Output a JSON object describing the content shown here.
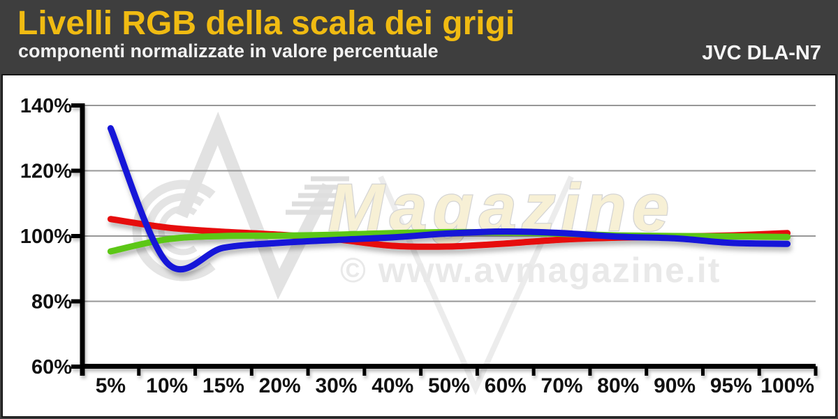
{
  "header": {
    "title": "Livelli RGB della scala dei grigi",
    "subtitle": "componenti normalizzate in valore percentuale",
    "device": "JVC DLA-N7",
    "background_color": "#3e3e3e",
    "title_color": "#f0bb12"
  },
  "watermark": {
    "logo": "AV",
    "brand": "Magazine",
    "copyright": "© www.avmagazine.it",
    "brand_fill_color": "#f7f0d5",
    "logo_gray_color": "#e3e3e3"
  },
  "chart_data": {
    "type": "line",
    "title": "Livelli RGB della scala dei grigi",
    "subtitle": "componenti normalizzate in valore percentuale",
    "device": "JVC DLA-N7",
    "categories": [
      "5%",
      "10%",
      "15%",
      "20%",
      "30%",
      "40%",
      "50%",
      "60%",
      "70%",
      "80%",
      "90%",
      "95%",
      "100%"
    ],
    "x_values": [
      5,
      10,
      15,
      20,
      30,
      40,
      50,
      60,
      70,
      80,
      90,
      95,
      100
    ],
    "yticks": [
      {
        "label": "140%",
        "value": 140
      },
      {
        "label": "120%",
        "value": 120
      },
      {
        "label": "100%",
        "value": 100
      },
      {
        "label": "80%",
        "value": 80
      },
      {
        "label": "60%",
        "value": 60
      }
    ],
    "ylim": [
      60,
      140
    ],
    "grid": true,
    "legend": "none",
    "xlabel": "",
    "ylabel": "",
    "series": [
      {
        "name": "red",
        "color": "#e60808",
        "values": [
          105.2,
          102.6,
          101.3,
          100.4,
          99.0,
          97.0,
          96.8,
          97.7,
          98.9,
          99.5,
          99.8,
          100.2,
          100.9
        ]
      },
      {
        "name": "green",
        "color": "#5cc713",
        "values": [
          95.3,
          99.0,
          100.0,
          100.1,
          100.4,
          100.9,
          101.2,
          101.1,
          100.7,
          100.2,
          100.0,
          99.9,
          99.7
        ]
      },
      {
        "name": "blue",
        "color": "#1313d8",
        "values": [
          133.0,
          91.8,
          96.4,
          97.9,
          98.8,
          99.6,
          100.8,
          101.4,
          100.9,
          99.8,
          99.3,
          97.9,
          97.6
        ]
      }
    ]
  }
}
